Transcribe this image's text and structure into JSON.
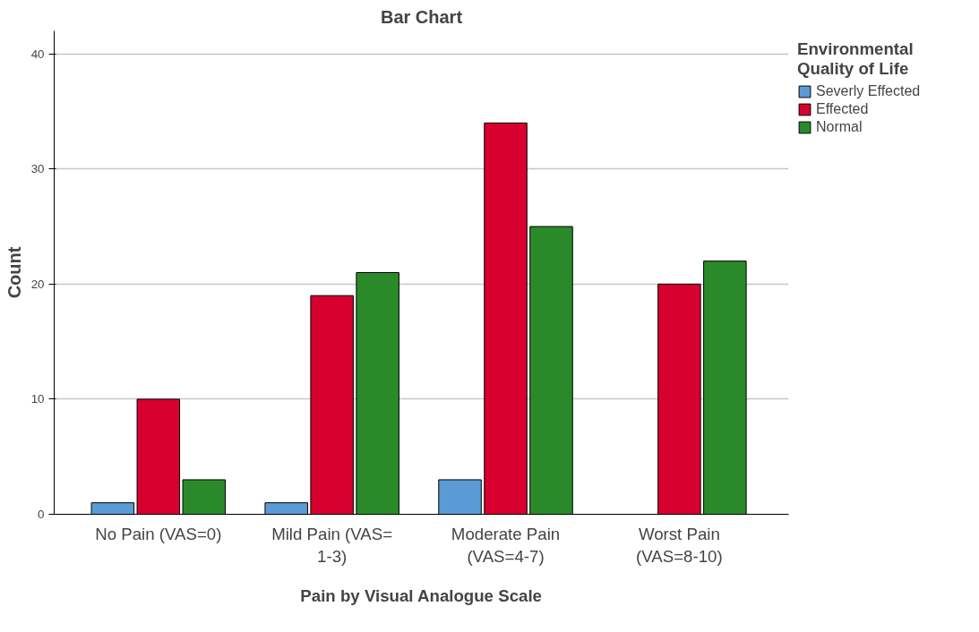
{
  "chart_data": {
    "type": "bar",
    "title": "Bar Chart",
    "xlabel": "Pain by Visual Analogue Scale",
    "ylabel": "Count",
    "legend_title": "Environmental Quality of Life",
    "categories": [
      "No Pain (VAS=0)",
      "Mild Pain (VAS= 1-3)",
      "Moderate Pain (VAS=4-7)",
      "Worst Pain (VAS=8-10)"
    ],
    "series": [
      {
        "name": "Severly Effected",
        "color": "#5b9bd5",
        "values": [
          1,
          1,
          3,
          null
        ]
      },
      {
        "name": "Effected",
        "color": "#d7002e",
        "values": [
          10,
          19,
          34,
          20
        ]
      },
      {
        "name": "Normal",
        "color": "#2a8a2a",
        "values": [
          3,
          21,
          25,
          22
        ]
      }
    ],
    "ylim": [
      0,
      42
    ],
    "yticks": [
      0,
      10,
      20,
      30,
      40
    ],
    "grid": "y",
    "legend": "right"
  }
}
